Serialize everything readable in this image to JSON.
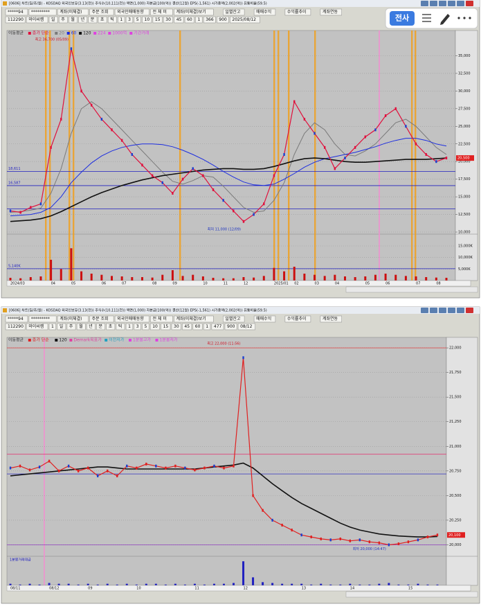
{
  "windows": [
    {
      "title": "[0606] 차트(일/주/월) - KOSDAQ 외국인보유(3.13(전)) 주식수(10,111(천)) 액면(1,000) 자본금(100(억)) 결산(12월) EPS(-1,561) 시가총액(2,002(억)) 유통비율(59.5)",
      "toolbar1": [
        "*****94",
        "*********",
        "계좌(미체결)",
        "주문 조회",
        "외국인매매동향",
        "전 체 미",
        "계좌(미체결)보기",
        "일별잔고",
        "매매수익",
        "수익률추이",
        "계좌연동"
      ],
      "toolbar2": [
        "112290",
        "와이씨켐",
        "일",
        "주",
        "월",
        "년",
        "분",
        "초",
        "틱",
        "1",
        "3",
        "5",
        "10",
        "15",
        "30",
        "45",
        "60",
        "1",
        "366",
        "900",
        "2025/08/12"
      ]
    },
    {
      "title": "[0606] 차트(일/주/월) - KOSDAQ 외국인보유(3.13(전)) 주식수(10,111(천)) 액면(1,000) 자본금(100(억)) 결산(12월) EPS(-1,561) 시가총액(2,002(억)) 유통비율(59.5)",
      "toolbar1": [
        "*****94",
        "*********",
        "계좌(미체결)",
        "주문 조회",
        "외국인매매동향",
        "전 체 미",
        "계좌(미체결)보기",
        "일별잔고",
        "매매수익",
        "수익률추이",
        "계좌연동"
      ],
      "toolbar2": [
        "112290",
        "와이씨켐",
        "1",
        "일",
        "주",
        "월",
        "년",
        "분",
        "초",
        "틱",
        "1",
        "3",
        "5",
        "10",
        "15",
        "30",
        "45",
        "60",
        "1",
        "477",
        "900",
        "08/12"
      ]
    }
  ],
  "overlay": {
    "button": "전사"
  },
  "chart_data": [
    {
      "type": "line",
      "legend_title": "이동평균",
      "legend_subtitle": "종가 단순",
      "categories": [
        "2024/03",
        null,
        null,
        null,
        "04",
        null,
        "05",
        null,
        null,
        "06",
        null,
        "07",
        null,
        null,
        "08",
        null,
        "09",
        null,
        null,
        "10",
        null,
        "11",
        null,
        "12",
        null,
        null,
        "2025/01",
        null,
        "02",
        null,
        "03",
        null,
        "04",
        null,
        null,
        "05",
        null,
        "06",
        null,
        null,
        "07",
        null,
        "08",
        null
      ],
      "values": [
        13000,
        12800,
        13500,
        14000,
        22000,
        26000,
        36000,
        30000,
        28000,
        26000,
        24500,
        23000,
        21000,
        19500,
        18000,
        17000,
        15500,
        17500,
        19000,
        18000,
        16000,
        14500,
        13000,
        11500,
        12500,
        14000,
        18000,
        21000,
        28500,
        26000,
        24000,
        22000,
        19000,
        20500,
        22000,
        23500,
        24500,
        26500,
        27500,
        25000,
        22500,
        21000,
        20000,
        20500
      ],
      "color": "#e0103c",
      "series": [
        {
          "name": "20",
          "color": "#7a7a7a",
          "values": [
            12800,
            12900,
            13100,
            13400,
            15500,
            19000,
            24000,
            27500,
            28500,
            27500,
            26000,
            24500,
            23000,
            21500,
            20000,
            18500,
            17200,
            16800,
            17300,
            18000,
            17800,
            16500,
            15000,
            13500,
            12800,
            13000,
            14500,
            17000,
            21000,
            24000,
            25500,
            24500,
            22500,
            21000,
            20800,
            21500,
            22500,
            24000,
            25500,
            26000,
            25000,
            23500,
            22000,
            21000
          ]
        },
        {
          "name": "60",
          "color": "#1c2de0",
          "values": [
            12300,
            12400,
            12500,
            12800,
            13500,
            15000,
            17000,
            18500,
            19800,
            20800,
            21500,
            22000,
            22300,
            22500,
            22500,
            22400,
            22100,
            21600,
            21000,
            20300,
            19500,
            18600,
            17800,
            17100,
            16700,
            16600,
            16800,
            17500,
            18300,
            19200,
            19900,
            20400,
            20700,
            21000,
            21300,
            21700,
            22100,
            22600,
            23000,
            23300,
            23300,
            23000,
            22500,
            22200
          ]
        },
        {
          "name": "120",
          "color": "#111111",
          "values": [
            11500,
            11600,
            11700,
            11900,
            12300,
            12900,
            13600,
            14300,
            15000,
            15600,
            16100,
            16600,
            17000,
            17400,
            17700,
            18000,
            18200,
            18400,
            18600,
            18800,
            18900,
            19000,
            19000,
            18900,
            18900,
            19000,
            19300,
            19700,
            20100,
            20400,
            20500,
            20400,
            20200,
            20000,
            19900,
            19900,
            20000,
            20100,
            20200,
            20300,
            20300,
            20300,
            20400,
            20500
          ]
        }
      ],
      "legend_extra": [
        {
          "text": "224",
          "color": "#e040e0"
        },
        {
          "text": "1000억",
          "color": "#e040e0"
        },
        {
          "text": "기간거래",
          "color": "#e040e0"
        }
      ],
      "ylim": [
        10000,
        37800
      ],
      "yticks": [
        {
          "value": 10000,
          "label": "10,000"
        },
        {
          "value": 12500,
          "label": "12,500"
        },
        {
          "value": 15000,
          "label": "15,000"
        },
        {
          "value": 17500,
          "label": "17,500"
        },
        {
          "value": 20000,
          "label": "20,000"
        },
        {
          "value": 22500,
          "label": "22,500"
        },
        {
          "value": 25000,
          "label": "25,000"
        },
        {
          "value": 27500,
          "label": "27,500"
        },
        {
          "value": 30000,
          "label": "30,000"
        },
        {
          "value": 32500,
          "label": "32,500"
        },
        {
          "value": 35000,
          "label": "35,000"
        }
      ],
      "grid": true,
      "hlines": [
        {
          "value": 18611,
          "label": "18,611",
          "color": "#2020c0"
        },
        {
          "value": 16587,
          "label": "16,587",
          "color": "#2020c0"
        },
        {
          "value": 13300,
          "color": "#2020c0"
        }
      ],
      "annotations": [
        {
          "text": "최고 36,700 (05/09)",
          "index": 6,
          "value": 36700
        },
        {
          "text": "최저 11,000 (12/09)",
          "index": 23,
          "value": 11000
        }
      ],
      "current": {
        "value": 20500,
        "label": "20,500"
      },
      "volume": {
        "values": [
          1200,
          1000,
          1500,
          1800,
          9000,
          5000,
          14000,
          4000,
          3000,
          2500,
          2000,
          1800,
          1500,
          1500,
          1300,
          2500,
          4500,
          2000,
          2500,
          1800,
          1200,
          1000,
          1000,
          1500,
          1300,
          2000,
          5500,
          4000,
          6000,
          3000,
          2500,
          2000,
          2500,
          1800,
          1500,
          1800,
          2500,
          3000,
          2500,
          2000,
          1800,
          1500,
          1300,
          1200
        ],
        "color": "#cc1010",
        "ylim": [
          0,
          19500
        ],
        "yticks": [
          {
            "value": 5000,
            "label": "5,000K"
          },
          {
            "value": 10000,
            "label": "10,000K"
          },
          {
            "value": 15000,
            "label": "15,000K"
          }
        ],
        "hline": {
          "value": 5140,
          "label": "5,140K"
        }
      }
    },
    {
      "type": "line",
      "legend_title": "이동평균",
      "legend_subtitle": "종가 단순",
      "categories": [
        "08/11",
        null,
        null,
        null,
        "08/12",
        null,
        null,
        null,
        "09",
        null,
        null,
        null,
        null,
        "10",
        null,
        null,
        null,
        null,
        null,
        "11",
        null,
        null,
        null,
        null,
        "12",
        null,
        null,
        null,
        null,
        null,
        "13",
        null,
        null,
        null,
        null,
        "14",
        null,
        null,
        null,
        null,
        null,
        "15",
        null,
        null,
        null
      ],
      "values": [
        20780,
        20800,
        20760,
        20790,
        20850,
        20750,
        20800,
        20750,
        20780,
        20700,
        20750,
        20700,
        20800,
        20780,
        20820,
        20800,
        20780,
        20800,
        20780,
        20760,
        20780,
        20800,
        20780,
        20800,
        21900,
        20500,
        20350,
        20250,
        20200,
        20150,
        20100,
        20080,
        20060,
        20050,
        20060,
        20040,
        20050,
        20030,
        20020,
        20000,
        20010,
        20030,
        20050,
        20080,
        20100
      ],
      "color": "#e02020",
      "series": [
        {
          "name": "120",
          "color": "#111111",
          "values": [
            20700,
            20710,
            20720,
            20730,
            20740,
            20750,
            20760,
            20770,
            20780,
            20790,
            20790,
            20780,
            20770,
            20770,
            20770,
            20770,
            20770,
            20770,
            20770,
            20770,
            20780,
            20790,
            20800,
            20810,
            20830,
            20780,
            20700,
            20620,
            20550,
            20480,
            20420,
            20370,
            20320,
            20270,
            20220,
            20180,
            20150,
            20130,
            20110,
            20100,
            20090,
            20085,
            20080,
            20080,
            20085
          ]
        }
      ],
      "legend_extra": [
        {
          "text": "Demark목표가",
          "color": "#e040a0"
        },
        {
          "text": "이전저가",
          "color": "#20a0c0"
        },
        {
          "text": "1분봉고가",
          "color": "#e040e0"
        },
        {
          "text": "1분봉저가",
          "color": "#e040e0"
        }
      ],
      "ylim": [
        19940,
        22050
      ],
      "yticks": [
        {
          "value": 20000,
          "label": "20,000"
        },
        {
          "value": 20250,
          "label": "20,250"
        },
        {
          "value": 20500,
          "label": "20,500"
        },
        {
          "value": 20750,
          "label": "20,750"
        },
        {
          "value": 21000,
          "label": "21,000"
        },
        {
          "value": 21250,
          "label": "21,250"
        },
        {
          "value": 21500,
          "label": "21,500"
        },
        {
          "value": 21750,
          "label": "21,750"
        },
        {
          "value": 22000,
          "label": "22,000"
        }
      ],
      "grid": true,
      "hlines": [
        {
          "value": 22000,
          "color": "#e04040"
        },
        {
          "value": 20920,
          "color": "#e0407a"
        },
        {
          "value": 20720,
          "color": "#3030c0"
        },
        {
          "value": 20000,
          "color": "#9040c0"
        }
      ],
      "annotations": [
        {
          "text": "최고 22,000 (11:56)",
          "index": 24,
          "value": 22000
        },
        {
          "text": "최저 20,000 (14:47)",
          "index": 39,
          "value": 20000
        }
      ],
      "current": {
        "value": 20100,
        "label": "20,100"
      },
      "volume": {
        "label": "1분봉거래대금",
        "color": "#2020c0",
        "values": [
          2,
          1,
          2,
          1,
          3,
          2,
          2,
          1,
          2,
          1,
          2,
          1,
          2,
          1,
          2,
          2,
          1,
          2,
          1,
          2,
          1,
          2,
          2,
          3,
          30,
          10,
          4,
          3,
          2,
          2,
          2,
          1,
          2,
          1,
          1,
          2,
          1,
          1,
          2,
          3,
          1,
          1,
          2,
          1,
          1
        ]
      }
    }
  ]
}
